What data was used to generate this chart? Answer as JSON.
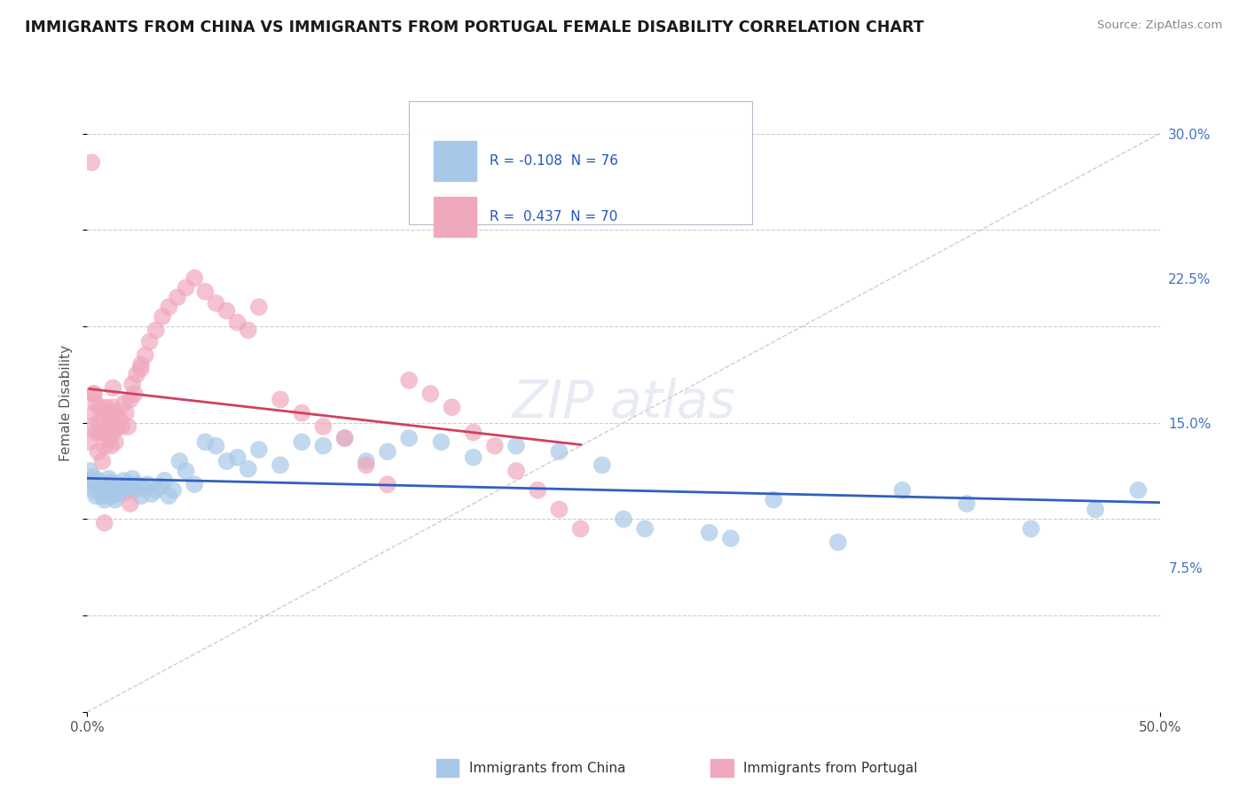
{
  "title": "IMMIGRANTS FROM CHINA VS IMMIGRANTS FROM PORTUGAL FEMALE DISABILITY CORRELATION CHART",
  "source": "Source: ZipAtlas.com",
  "ylabel": "Female Disability",
  "right_yticks": [
    "7.5%",
    "15.0%",
    "22.5%",
    "30.0%"
  ],
  "right_ytick_vals": [
    0.075,
    0.15,
    0.225,
    0.3
  ],
  "china_color": "#a8c8e8",
  "portugal_color": "#f0a8bc",
  "china_line_color": "#3060c0",
  "portugal_line_color": "#d04060",
  "diagonal_color": "#c8c8c8",
  "background_color": "#ffffff",
  "grid_color": "#c8c8c8",
  "xlim": [
    0.0,
    0.5
  ],
  "ylim": [
    0.0,
    0.32
  ],
  "china_x": [
    0.001,
    0.002,
    0.002,
    0.003,
    0.003,
    0.004,
    0.004,
    0.005,
    0.005,
    0.006,
    0.006,
    0.007,
    0.007,
    0.008,
    0.008,
    0.009,
    0.009,
    0.01,
    0.01,
    0.011,
    0.011,
    0.012,
    0.012,
    0.013,
    0.013,
    0.014,
    0.015,
    0.016,
    0.017,
    0.018,
    0.019,
    0.02,
    0.021,
    0.022,
    0.023,
    0.025,
    0.026,
    0.028,
    0.03,
    0.032,
    0.034,
    0.036,
    0.038,
    0.04,
    0.043,
    0.046,
    0.05,
    0.055,
    0.06,
    0.065,
    0.07,
    0.075,
    0.08,
    0.09,
    0.1,
    0.11,
    0.12,
    0.13,
    0.14,
    0.15,
    0.165,
    0.18,
    0.2,
    0.22,
    0.24,
    0.26,
    0.29,
    0.32,
    0.35,
    0.38,
    0.41,
    0.44,
    0.47,
    0.49,
    0.3,
    0.25
  ],
  "china_y": [
    0.125,
    0.12,
    0.118,
    0.115,
    0.122,
    0.118,
    0.112,
    0.116,
    0.12,
    0.114,
    0.119,
    0.112,
    0.117,
    0.115,
    0.11,
    0.113,
    0.118,
    0.116,
    0.121,
    0.114,
    0.119,
    0.112,
    0.117,
    0.115,
    0.11,
    0.118,
    0.113,
    0.116,
    0.12,
    0.114,
    0.118,
    0.116,
    0.121,
    0.115,
    0.118,
    0.112,
    0.116,
    0.118,
    0.113,
    0.115,
    0.117,
    0.12,
    0.112,
    0.115,
    0.13,
    0.125,
    0.118,
    0.14,
    0.138,
    0.13,
    0.132,
    0.126,
    0.136,
    0.128,
    0.14,
    0.138,
    0.142,
    0.13,
    0.135,
    0.142,
    0.14,
    0.132,
    0.138,
    0.135,
    0.128,
    0.095,
    0.093,
    0.11,
    0.088,
    0.115,
    0.108,
    0.095,
    0.105,
    0.115,
    0.09,
    0.1
  ],
  "portugal_x": [
    0.001,
    0.002,
    0.003,
    0.003,
    0.004,
    0.004,
    0.005,
    0.005,
    0.006,
    0.006,
    0.007,
    0.007,
    0.008,
    0.008,
    0.009,
    0.009,
    0.01,
    0.01,
    0.011,
    0.011,
    0.012,
    0.012,
    0.013,
    0.013,
    0.014,
    0.015,
    0.016,
    0.017,
    0.018,
    0.019,
    0.02,
    0.021,
    0.022,
    0.023,
    0.025,
    0.027,
    0.029,
    0.032,
    0.035,
    0.038,
    0.042,
    0.046,
    0.05,
    0.055,
    0.06,
    0.065,
    0.07,
    0.075,
    0.08,
    0.09,
    0.1,
    0.11,
    0.12,
    0.13,
    0.14,
    0.15,
    0.16,
    0.17,
    0.18,
    0.19,
    0.2,
    0.21,
    0.22,
    0.23,
    0.002,
    0.003,
    0.008,
    0.012,
    0.02,
    0.025
  ],
  "portugal_y": [
    0.14,
    0.285,
    0.155,
    0.165,
    0.145,
    0.16,
    0.135,
    0.15,
    0.145,
    0.158,
    0.13,
    0.145,
    0.138,
    0.152,
    0.145,
    0.158,
    0.142,
    0.155,
    0.138,
    0.15,
    0.145,
    0.158,
    0.14,
    0.155,
    0.148,
    0.152,
    0.148,
    0.16,
    0.155,
    0.148,
    0.162,
    0.17,
    0.165,
    0.175,
    0.18,
    0.185,
    0.192,
    0.198,
    0.205,
    0.21,
    0.215,
    0.22,
    0.225,
    0.218,
    0.212,
    0.208,
    0.202,
    0.198,
    0.21,
    0.162,
    0.155,
    0.148,
    0.142,
    0.128,
    0.118,
    0.172,
    0.165,
    0.158,
    0.145,
    0.138,
    0.125,
    0.115,
    0.105,
    0.095,
    0.148,
    0.165,
    0.098,
    0.168,
    0.108,
    0.178
  ]
}
